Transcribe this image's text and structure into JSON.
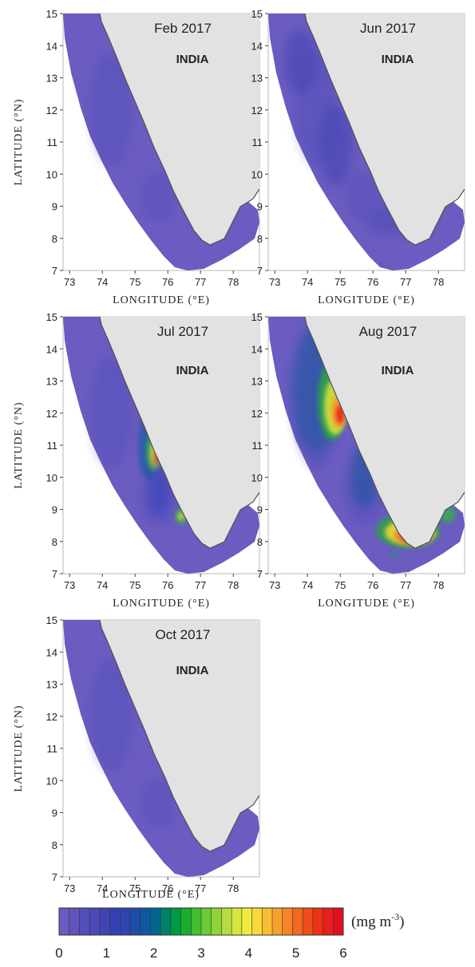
{
  "panels": [
    {
      "title": "Feb 2017",
      "country": "INDIA",
      "lon_ticks": [
        "73",
        "74",
        "75",
        "76",
        "77",
        "78"
      ],
      "lat_ticks": [
        "15",
        "14",
        "13",
        "12",
        "11",
        "10",
        "9",
        "8",
        "7"
      ],
      "xlabel": "LONGITUDE (°E)",
      "ylabel": "LATITUDE (°N)",
      "bloom": "none"
    },
    {
      "title": "Jun 2017",
      "country": "INDIA",
      "lon_ticks": [
        "73",
        "74",
        "75",
        "76",
        "77",
        "78"
      ],
      "lat_ticks": [
        "15",
        "14",
        "13",
        "12",
        "11",
        "10",
        "9",
        "8",
        "7"
      ],
      "xlabel": "LONGITUDE (°E)",
      "ylabel": "",
      "bloom": "low"
    },
    {
      "title": "Jul 2017",
      "country": "INDIA",
      "lon_ticks": [
        "73",
        "74",
        "75",
        "76",
        "77",
        "78"
      ],
      "lat_ticks": [
        "15",
        "14",
        "13",
        "12",
        "11",
        "10",
        "9",
        "8",
        "7"
      ],
      "xlabel": "LONGITUDE (°E)",
      "ylabel": "LATITUDE (°N)",
      "bloom": "central"
    },
    {
      "title": "Aug 2017",
      "country": "INDIA",
      "lon_ticks": [
        "73",
        "74",
        "75",
        "76",
        "77",
        "78"
      ],
      "lat_ticks": [
        "15",
        "14",
        "13",
        "12",
        "11",
        "10",
        "9",
        "8",
        "7"
      ],
      "xlabel": "LONGITUDE (°E)",
      "ylabel": "",
      "bloom": "strong"
    },
    {
      "title": "Oct 2017",
      "country": "INDIA",
      "lon_ticks": [
        "73",
        "74",
        "75",
        "76",
        "77",
        "78"
      ],
      "lat_ticks": [
        "15",
        "14",
        "13",
        "12",
        "11",
        "10",
        "9",
        "8",
        "7"
      ],
      "xlabel": "LONGITUDE (°E)",
      "ylabel": "LATITUDE (°N)",
      "bloom": "none"
    }
  ],
  "colorbar": {
    "ticks": [
      "0",
      "1",
      "2",
      "3",
      "4",
      "5",
      "6"
    ],
    "unit": "(mg m",
    "unit_sup": "-3",
    "unit_close": ")",
    "colors": [
      "#6a5cc0",
      "#5f55bd",
      "#554fba",
      "#4b4ab8",
      "#4045b5",
      "#3640b2",
      "#2d46ad",
      "#204da7",
      "#0f57a0",
      "#00678d",
      "#00806a",
      "#009845",
      "#1aae2e",
      "#42bf2f",
      "#6acb35",
      "#90d43b",
      "#b4dd3f",
      "#d6e640",
      "#f0ea3c",
      "#f9d83a",
      "#f9bd33",
      "#f7a12d",
      "#f58527",
      "#f2691f",
      "#ef4d19",
      "#ec3215",
      "#e71e1a",
      "#e0111e"
    ]
  },
  "colors": {
    "land": "#e2e2e2",
    "coast": "#505050",
    "sea_base": "#6a5cc0",
    "sea_dark": "#4a48b8",
    "frame": "#b8b8b8"
  }
}
